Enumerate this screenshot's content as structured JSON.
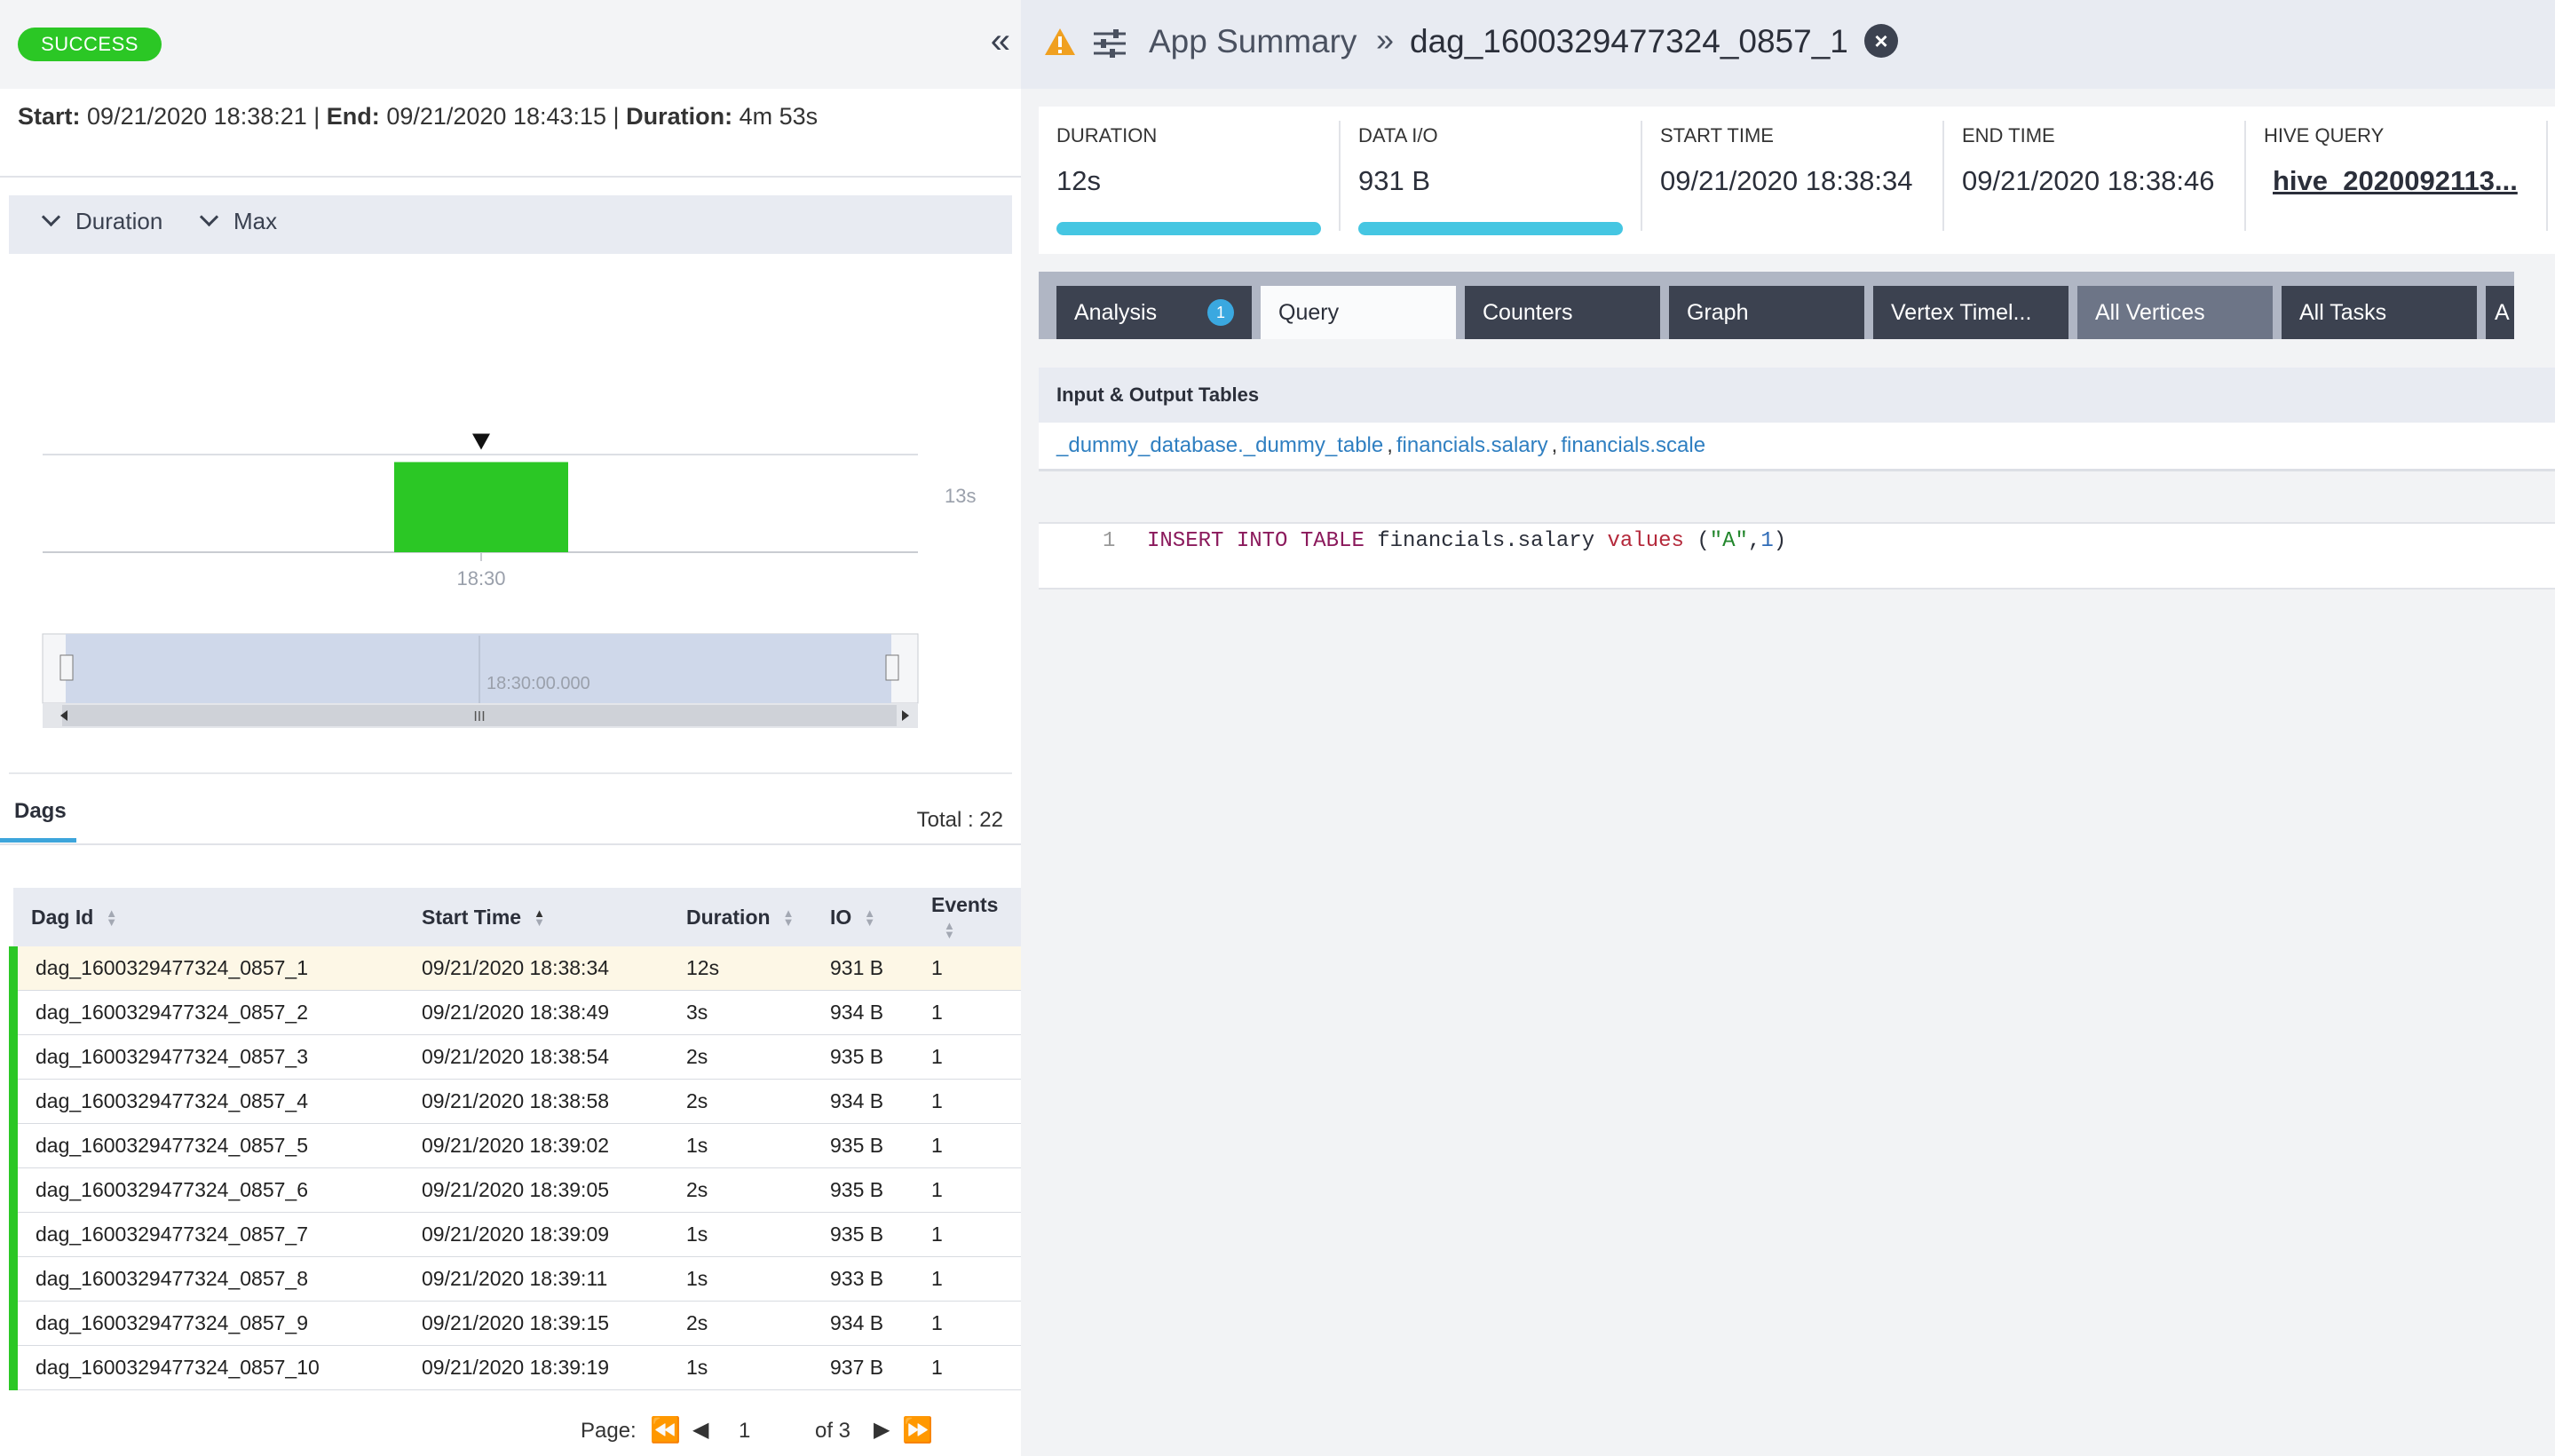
{
  "left": {
    "status_badge": "SUCCESS",
    "times": {
      "start_label": "Start:",
      "start": "09/21/2020 18:38:21",
      "end_label": "End:",
      "end": "09/21/2020 18:43:15",
      "duration_label": "Duration:",
      "duration": "4m 53s"
    },
    "chart_controls": {
      "metric": "Duration",
      "aggregate": "Max"
    },
    "dags_tab": "Dags",
    "total": "Total : 22",
    "table": {
      "headers": [
        "Dag Id",
        "Start Time",
        "Duration",
        "IO",
        "Events"
      ],
      "rows": [
        [
          "dag_1600329477324_0857_1",
          "09/21/2020 18:38:34",
          "12s",
          "931 B",
          "1"
        ],
        [
          "dag_1600329477324_0857_2",
          "09/21/2020 18:38:49",
          "3s",
          "934 B",
          "1"
        ],
        [
          "dag_1600329477324_0857_3",
          "09/21/2020 18:38:54",
          "2s",
          "935 B",
          "1"
        ],
        [
          "dag_1600329477324_0857_4",
          "09/21/2020 18:38:58",
          "2s",
          "934 B",
          "1"
        ],
        [
          "dag_1600329477324_0857_5",
          "09/21/2020 18:39:02",
          "1s",
          "935 B",
          "1"
        ],
        [
          "dag_1600329477324_0857_6",
          "09/21/2020 18:39:05",
          "2s",
          "935 B",
          "1"
        ],
        [
          "dag_1600329477324_0857_7",
          "09/21/2020 18:39:09",
          "1s",
          "935 B",
          "1"
        ],
        [
          "dag_1600329477324_0857_8",
          "09/21/2020 18:39:11",
          "1s",
          "933 B",
          "1"
        ],
        [
          "dag_1600329477324_0857_9",
          "09/21/2020 18:39:15",
          "2s",
          "934 B",
          "1"
        ],
        [
          "dag_1600329477324_0857_10",
          "09/21/2020 18:39:19",
          "1s",
          "937 B",
          "1"
        ]
      ]
    },
    "pager": {
      "label": "Page:",
      "current": "1",
      "of": "of 3"
    }
  },
  "chart_data": {
    "type": "bar",
    "categories": [
      "18:30"
    ],
    "values": [
      12
    ],
    "ytick": "13s",
    "xtick": "18:30",
    "navigator_label": "18:30:00.000"
  },
  "right": {
    "app_title": "App Summary",
    "dag_title": "dag_1600329477324_0857_1",
    "stats": [
      {
        "label": "DURATION",
        "value": "12s",
        "fill": 1.0
      },
      {
        "label": "DATA I/O",
        "value": "931 B",
        "fill": 1.0
      },
      {
        "label": "START TIME",
        "value": "09/21/2020 18:38:34"
      },
      {
        "label": "END TIME",
        "value": "09/21/2020 18:38:46"
      },
      {
        "label": "HIVE QUERY",
        "value": "hive_2020092113..."
      }
    ],
    "tabs": [
      "Analysis",
      "Query",
      "Counters",
      "Graph",
      "Vertex Timel...",
      "All Vertices",
      "All Tasks",
      "A"
    ],
    "analysis_badge": "1",
    "io_header": "Input & Output Tables",
    "tables": [
      "_dummy_database._dummy_table",
      "financials.salary",
      "financials.scale"
    ],
    "code": {
      "line_number": "1",
      "kw1": "INSERT INTO TABLE",
      "plain": "financials.salary",
      "fn": "values",
      "open": "(",
      "str": "\"A\"",
      "comma": ",",
      "num": "1",
      "close": ")"
    },
    "colors": {
      "accent": "#45c6e2",
      "success": "#2bc725",
      "tab_dark": "#3c4250",
      "link": "#2f7fc1"
    }
  }
}
